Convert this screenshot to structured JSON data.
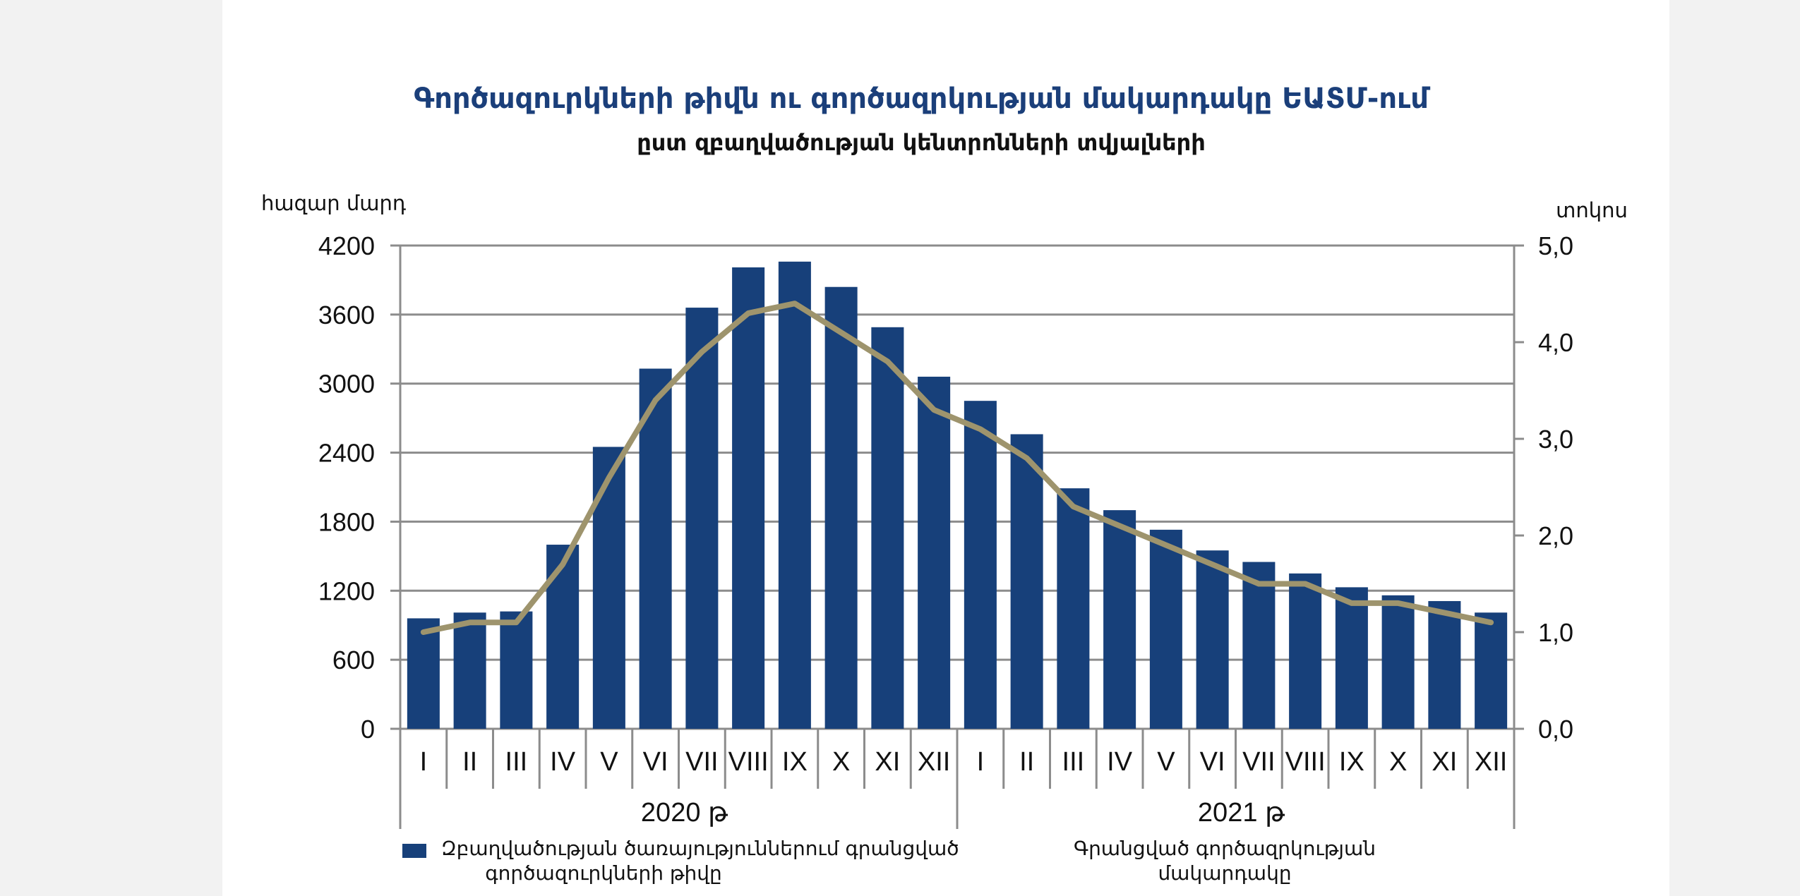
{
  "chart_data": {
    "type": "bar",
    "title": "Գործազուրկների թիվն ու գործազրկության մակարդակը ԵԱՏՄ-ում",
    "subtitle": "ըստ զբաղվածության կենտրոնների տվյալների",
    "y_left_unit": "հազար մարդ",
    "y_right_unit": "տոկոս",
    "y_left_lim": [
      0,
      4200
    ],
    "y_left_ticks": [
      "0",
      "600",
      "1200",
      "1800",
      "2400",
      "3000",
      "3600",
      "4200"
    ],
    "y_right_lim": [
      0,
      5
    ],
    "y_right_ticks": [
      "0,0",
      "1,0",
      "2,0",
      "3,0",
      "4,0",
      "5,0"
    ],
    "categories": [
      "I",
      "II",
      "III",
      "IV",
      "V",
      "VI",
      "VII",
      "VIII",
      "IX",
      "X",
      "XI",
      "XII",
      "I",
      "II",
      "III",
      "IV",
      "V",
      "VI",
      "VII",
      "VIII",
      "IX",
      "X",
      "XI",
      "XII"
    ],
    "year_groups": [
      {
        "label": "2020 թ",
        "count": 12
      },
      {
        "label": "2021 թ",
        "count": 12
      }
    ],
    "grid": true,
    "series": [
      {
        "name": "Զբաղվածության ծառայություններում գրանցված գործազուրկների թիվը",
        "name_lines": [
          "Զբաղվածության ծառայություններում գրանցված",
          "գործազուրկների թիվը"
        ],
        "type": "bar",
        "axis": "left",
        "color": "#17407a",
        "values": [
          960,
          1010,
          1020,
          1600,
          2450,
          3130,
          3660,
          4010,
          4060,
          3840,
          3490,
          3060,
          2850,
          2560,
          2090,
          1900,
          1730,
          1550,
          1450,
          1350,
          1230,
          1160,
          1110,
          1010
        ]
      },
      {
        "name": "Գրանցված գործազրկության մակարդակը",
        "name_lines": [
          "Գրանցված գործազրկության",
          "մակարդակը"
        ],
        "type": "line",
        "axis": "right",
        "color": "#9e946d",
        "values": [
          1.0,
          1.1,
          1.1,
          1.7,
          2.6,
          3.4,
          3.9,
          4.3,
          4.4,
          4.1,
          3.8,
          3.3,
          3.1,
          2.8,
          2.3,
          2.1,
          1.9,
          1.7,
          1.5,
          1.5,
          1.3,
          1.3,
          1.2,
          1.1
        ]
      }
    ],
    "legend_position": "bottom"
  }
}
